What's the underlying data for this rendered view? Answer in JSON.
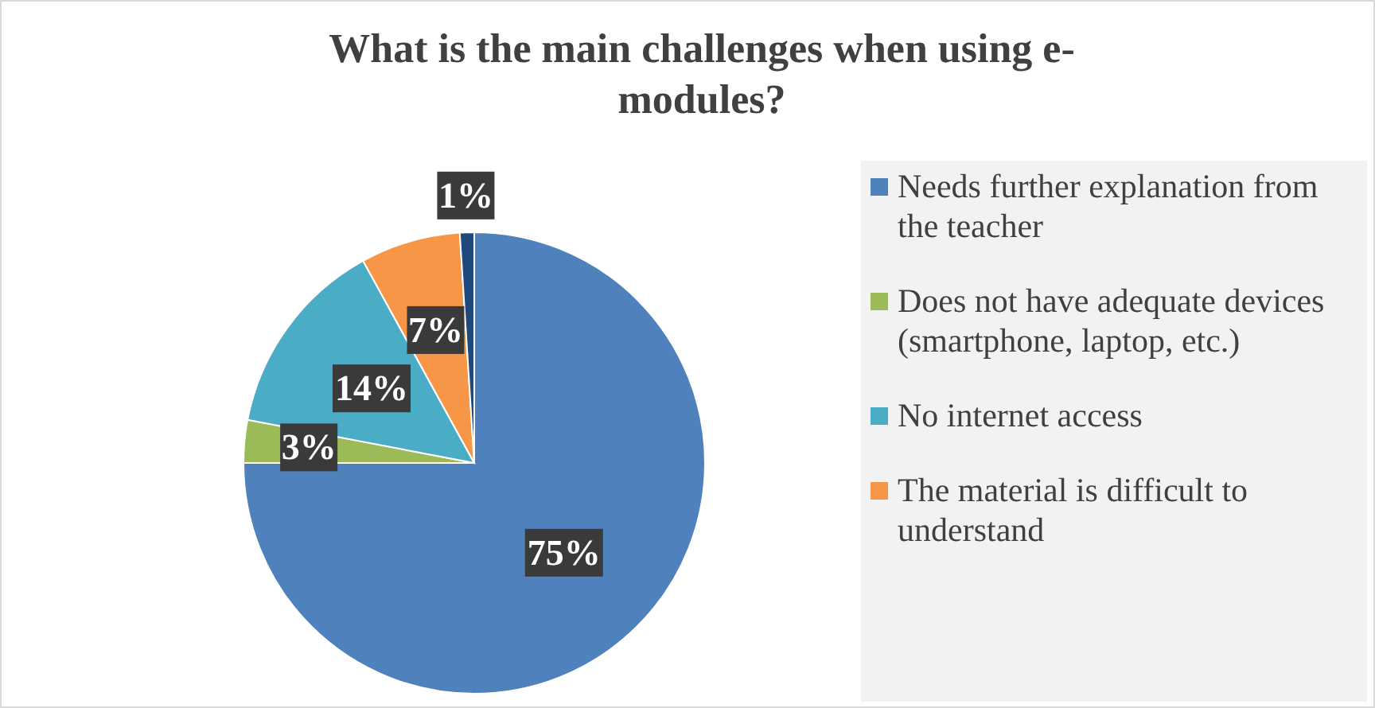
{
  "chart_data": {
    "type": "pie",
    "title": "What is the main challenges when using e-modules?",
    "categories": [
      "Needs further explanation from the teacher",
      "Does not have adequate devices (smartphone, laptop, etc.)",
      "No internet access",
      "The material is difficult to understand",
      null
    ],
    "values": [
      75,
      3,
      14,
      7,
      1
    ],
    "colors": [
      "#4f81bd",
      "#9bbb59",
      "#4bacc6",
      "#f79646",
      "#1f497d"
    ],
    "value_labels": [
      "75%",
      "3%",
      "14%",
      "7%",
      "1%"
    ],
    "legend": "right"
  }
}
